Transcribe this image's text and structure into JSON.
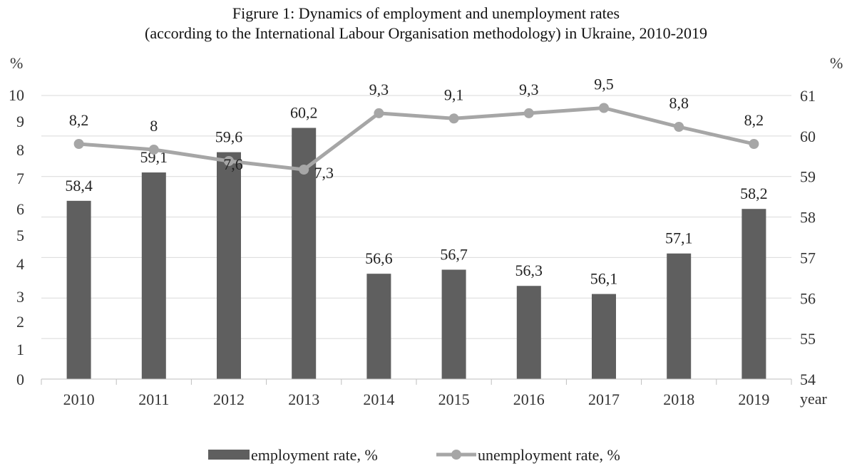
{
  "chart_data": {
    "type": "bar+line",
    "title_line1": "Figrure 1: Dynamics of employment and unemployment rates",
    "title_line2": "(according to the International Labour Organisation methodology) in Ukraine, 2010-2019",
    "categories": [
      "2010",
      "2011",
      "2012",
      "2013",
      "2014",
      "2015",
      "2016",
      "2017",
      "2018",
      "2019"
    ],
    "xlabel": "year",
    "left_axis": {
      "unit_label": "%",
      "ticks": [
        0,
        1,
        2,
        3,
        4,
        5,
        6,
        7,
        8,
        9,
        10
      ]
    },
    "right_axis": {
      "unit_label": "%",
      "ticks": [
        54,
        55,
        56,
        57,
        58,
        59,
        60,
        61
      ],
      "range": [
        54,
        61
      ]
    },
    "series": [
      {
        "name": "employment rate, %",
        "kind": "bar",
        "axis": "right",
        "color": "#5f5f5f",
        "values": [
          58.4,
          59.1,
          59.6,
          60.2,
          56.6,
          56.7,
          56.3,
          56.1,
          57.1,
          58.2
        ],
        "labels": [
          "58,4",
          "59,1",
          "59,6",
          "60,2",
          "56,6",
          "56,7",
          "56,3",
          "56,1",
          "57,1",
          "58,2"
        ]
      },
      {
        "name": "unemployment rate, %",
        "kind": "line",
        "axis": "left",
        "color": "#a6a6a6",
        "values": [
          8.2,
          8.0,
          7.6,
          7.3,
          9.3,
          9.1,
          9.3,
          9.5,
          8.8,
          8.2
        ],
        "labels": [
          "8,2",
          "8",
          "7,6",
          "7,3",
          "9,3",
          "9,1",
          "9,3",
          "9,5",
          "8,8",
          "8,2"
        ]
      }
    ],
    "grid": true,
    "legend_position": "bottom"
  }
}
